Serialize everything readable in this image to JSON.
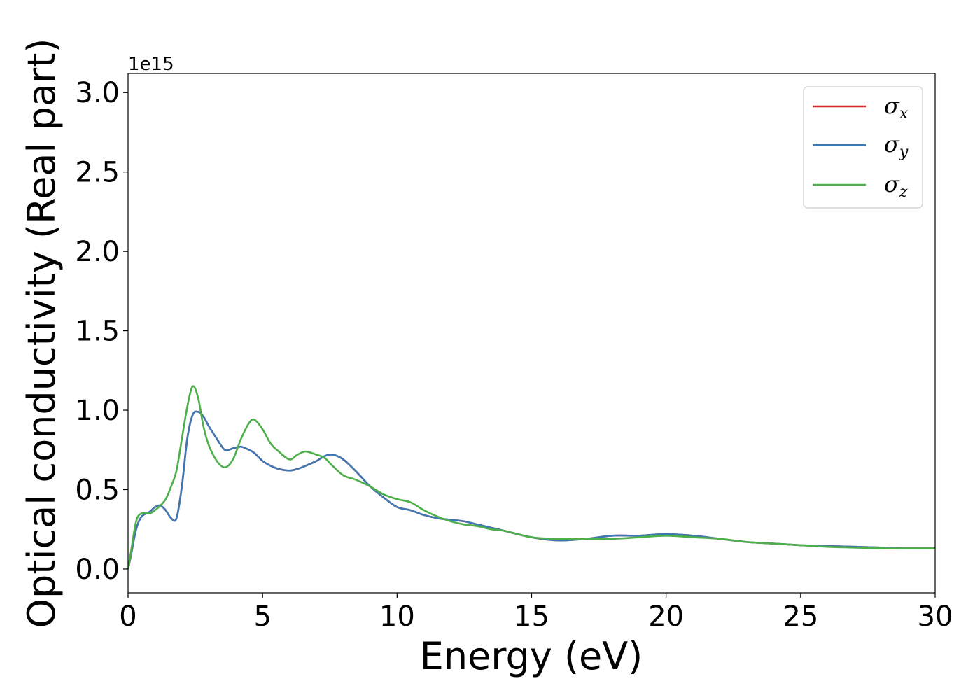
{
  "chart_data": {
    "type": "line",
    "xlabel": "Energy (eV)",
    "ylabel": "Optical conductivity (Real part)",
    "y_offset_text": "1e15",
    "xlim": [
      0,
      30
    ],
    "ylim": [
      -0.15,
      3.12
    ],
    "y_scale_factor": 1000000000000000.0,
    "x_ticks": [
      0,
      5,
      10,
      15,
      20,
      25,
      30
    ],
    "x_tick_labels": [
      "0",
      "5",
      "10",
      "15",
      "20",
      "25",
      "30"
    ],
    "y_ticks": [
      0.0,
      0.5,
      1.0,
      1.5,
      2.0,
      2.5,
      3.0
    ],
    "y_tick_labels": [
      "0.0",
      "0.5",
      "1.0",
      "1.5",
      "2.0",
      "2.5",
      "3.0"
    ],
    "grid": false,
    "legend_position": "top-right",
    "x": [
      0,
      0.1,
      0.3,
      0.5,
      0.8,
      1.0,
      1.2,
      1.4,
      1.6,
      1.8,
      2.0,
      2.2,
      2.4,
      2.6,
      2.8,
      3.0,
      3.3,
      3.6,
      3.9,
      4.2,
      4.5,
      4.7,
      5.0,
      5.3,
      5.6,
      6.0,
      6.3,
      6.6,
      7.0,
      7.3,
      7.6,
      8.0,
      8.5,
      9.0,
      9.5,
      10.0,
      10.5,
      11.0,
      11.5,
      12.0,
      12.5,
      13.0,
      13.5,
      14.0,
      15.0,
      16.0,
      17.0,
      18.0,
      19.0,
      20.0,
      21.0,
      22.0,
      23.0,
      24.0,
      25.0,
      26.0,
      27.0,
      28.0,
      29.0,
      30.0
    ],
    "series": [
      {
        "name": "σx",
        "label_main": "σ",
        "label_sub": "x",
        "color": "#d62728",
        "values": [
          0,
          0.08,
          0.25,
          0.33,
          0.36,
          0.39,
          0.4,
          0.37,
          0.32,
          0.32,
          0.52,
          0.82,
          0.97,
          0.99,
          0.96,
          0.9,
          0.82,
          0.75,
          0.76,
          0.77,
          0.75,
          0.73,
          0.68,
          0.65,
          0.63,
          0.62,
          0.63,
          0.65,
          0.68,
          0.71,
          0.72,
          0.69,
          0.61,
          0.52,
          0.45,
          0.39,
          0.37,
          0.34,
          0.32,
          0.31,
          0.3,
          0.28,
          0.26,
          0.24,
          0.2,
          0.18,
          0.19,
          0.21,
          0.21,
          0.22,
          0.21,
          0.19,
          0.17,
          0.16,
          0.15,
          0.145,
          0.14,
          0.135,
          0.13,
          0.13
        ]
      },
      {
        "name": "σy",
        "label_main": "σ",
        "label_sub": "y",
        "color": "#3e78b2",
        "values": [
          0,
          0.08,
          0.25,
          0.33,
          0.36,
          0.39,
          0.4,
          0.37,
          0.32,
          0.32,
          0.52,
          0.82,
          0.97,
          0.99,
          0.96,
          0.9,
          0.82,
          0.75,
          0.76,
          0.77,
          0.75,
          0.73,
          0.68,
          0.65,
          0.63,
          0.62,
          0.63,
          0.65,
          0.68,
          0.71,
          0.72,
          0.69,
          0.61,
          0.52,
          0.45,
          0.39,
          0.37,
          0.34,
          0.32,
          0.31,
          0.3,
          0.28,
          0.26,
          0.24,
          0.2,
          0.18,
          0.19,
          0.21,
          0.21,
          0.22,
          0.21,
          0.19,
          0.17,
          0.16,
          0.15,
          0.145,
          0.14,
          0.135,
          0.13,
          0.13
        ]
      },
      {
        "name": "σz",
        "label_main": "σ",
        "label_sub": "z",
        "color": "#4daf4a",
        "values": [
          0,
          0.1,
          0.3,
          0.35,
          0.35,
          0.37,
          0.4,
          0.44,
          0.52,
          0.62,
          0.82,
          1.02,
          1.15,
          1.08,
          0.9,
          0.78,
          0.68,
          0.64,
          0.69,
          0.82,
          0.92,
          0.94,
          0.88,
          0.79,
          0.74,
          0.69,
          0.72,
          0.74,
          0.72,
          0.7,
          0.65,
          0.59,
          0.56,
          0.52,
          0.47,
          0.44,
          0.42,
          0.37,
          0.33,
          0.3,
          0.28,
          0.27,
          0.25,
          0.24,
          0.2,
          0.19,
          0.19,
          0.19,
          0.2,
          0.21,
          0.2,
          0.19,
          0.17,
          0.16,
          0.15,
          0.14,
          0.135,
          0.13,
          0.13,
          0.13
        ]
      }
    ]
  }
}
